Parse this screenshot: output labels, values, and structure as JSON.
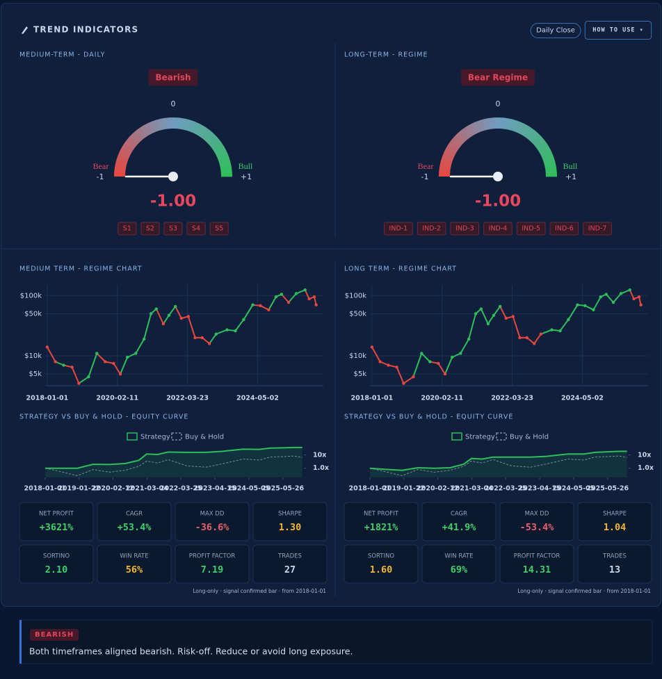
{
  "header": {
    "title": "TREND INDICATORS",
    "buttons": [
      "Daily Close",
      "HOW TO USE ▾"
    ]
  },
  "panels": [
    {
      "title": "MEDIUM-TERM - DAILY",
      "badge": "Bearish",
      "gauge": {
        "range": [
          -1,
          1
        ],
        "ticks": [
          -1,
          0,
          {
            "value": 1,
            "label": "+1"
          }
        ],
        "bear_label": "Bear",
        "bull_label": "Bull",
        "value": -1,
        "value_label": "-1.00"
      },
      "indicators": [
        "S1",
        "S2",
        "S3",
        "S4",
        "S5"
      ]
    },
    {
      "title": "LONG-TERM - REGIME",
      "badge": "Bear Regime",
      "gauge": {
        "range": [
          -1,
          1
        ],
        "ticks": [
          -1,
          0,
          {
            "value": 1,
            "label": "+1"
          }
        ],
        "bear_label": "Bear",
        "bull_label": "Bull",
        "value": -1,
        "value_label": "-1.00"
      },
      "indicators": [
        "IND-1",
        "IND-2",
        "IND-3",
        "IND-4",
        "IND-5",
        "IND-6",
        "IND-7"
      ]
    }
  ],
  "regime_charts": [
    {
      "type": "line",
      "title": "MEDIUM TERM - REGIME CHART",
      "log_scale": true,
      "grid": true,
      "xlim": [
        "2017-12-10",
        "2026-04-25"
      ],
      "ylim": [
        3200,
        150000
      ],
      "xticks": [
        "2018-01-01",
        "2020-02-11",
        "2022-03-23",
        "2024-05-02"
      ],
      "yticks": [
        {
          "value": 5000,
          "label": "$5k"
        },
        {
          "value": 10000,
          "label": "$10k"
        },
        {
          "value": 50000,
          "label": "$50k"
        },
        {
          "value": 100000,
          "label": "$100k"
        }
      ],
      "x": [
        "2018-01-01",
        "2018-04-01",
        "2018-07-01",
        "2018-10-01",
        "2018-12-15",
        "2019-04-01",
        "2019-07-01",
        "2019-10-01",
        "2020-01-01",
        "2020-03-15",
        "2020-06-01",
        "2020-09-01",
        "2020-12-01",
        "2021-02-15",
        "2021-04-15",
        "2021-07-01",
        "2021-09-01",
        "2021-11-10",
        "2022-01-15",
        "2022-04-01",
        "2022-06-15",
        "2022-09-01",
        "2022-11-20",
        "2023-02-01",
        "2023-06-01",
        "2023-09-01",
        "2023-12-01",
        "2024-03-10",
        "2024-06-01",
        "2024-09-01",
        "2024-11-20",
        "2025-01-20",
        "2025-04-08",
        "2025-07-01",
        "2025-10-06",
        "2025-11-20",
        "2026-01-15",
        "2026-02-05"
      ],
      "values": [
        14000,
        8000,
        7000,
        6500,
        3500,
        4500,
        11000,
        8000,
        7500,
        5000,
        9500,
        11000,
        19000,
        50000,
        60000,
        34000,
        47000,
        66000,
        42000,
        45000,
        20000,
        20000,
        16000,
        23000,
        27000,
        26000,
        40000,
        70000,
        68000,
        58000,
        95000,
        105000,
        77000,
        108000,
        124000,
        88000,
        95000,
        70000
      ],
      "colors": [
        "#e8473f",
        "#e8473f",
        "#2fbf5a",
        "#e8473f",
        "#e8473f",
        "#2fbf5a",
        "#2fbf5a",
        "#e8473f",
        "#e8473f",
        "#e8473f",
        "#2fbf5a",
        "#2fbf5a",
        "#2fbf5a",
        "#2fbf5a",
        "#2fbf5a",
        "#e8473f",
        "#2fbf5a",
        "#2fbf5a",
        "#e8473f",
        "#e8473f",
        "#e8473f",
        "#e8473f",
        "#e8473f",
        "#2fbf5a",
        "#2fbf5a",
        "#2fbf5a",
        "#2fbf5a",
        "#2fbf5a",
        "#e8473f",
        "#e8473f",
        "#2fbf5a",
        "#2fbf5a",
        "#e8473f",
        "#2fbf5a",
        "#2fbf5a",
        "#e8473f",
        "#e8473f",
        "#e8473f"
      ]
    },
    {
      "type": "line",
      "title": "LONG TERM - REGIME CHART",
      "log_scale": true,
      "grid": true,
      "xlim": [
        "2017-12-10",
        "2026-04-25"
      ],
      "ylim": [
        3200,
        150000
      ],
      "xticks": [
        "2018-01-01",
        "2020-02-11",
        "2022-03-23",
        "2024-05-02"
      ],
      "yticks": [
        {
          "value": 5000,
          "label": "$5k"
        },
        {
          "value": 10000,
          "label": "$10k"
        },
        {
          "value": 50000,
          "label": "$50k"
        },
        {
          "value": 100000,
          "label": "$100k"
        }
      ],
      "x": [
        "2018-01-01",
        "2018-04-01",
        "2018-07-01",
        "2018-10-01",
        "2018-12-15",
        "2019-04-01",
        "2019-07-01",
        "2019-10-01",
        "2020-01-01",
        "2020-03-15",
        "2020-06-01",
        "2020-09-01",
        "2020-12-01",
        "2021-02-15",
        "2021-04-15",
        "2021-07-01",
        "2021-09-01",
        "2021-11-10",
        "2022-01-15",
        "2022-04-01",
        "2022-06-15",
        "2022-09-01",
        "2022-11-20",
        "2023-02-01",
        "2023-06-01",
        "2023-09-01",
        "2023-12-01",
        "2024-03-10",
        "2024-06-01",
        "2024-09-01",
        "2024-11-20",
        "2025-01-20",
        "2025-04-08",
        "2025-07-01",
        "2025-10-06",
        "2025-11-20",
        "2026-01-15",
        "2026-02-05"
      ],
      "values": [
        14000,
        8000,
        7000,
        6500,
        3500,
        4500,
        11000,
        8000,
        7500,
        5000,
        9500,
        11000,
        19000,
        50000,
        60000,
        34000,
        47000,
        66000,
        42000,
        45000,
        20000,
        20000,
        16000,
        23000,
        27000,
        26000,
        40000,
        70000,
        68000,
        58000,
        95000,
        105000,
        77000,
        108000,
        124000,
        88000,
        95000,
        70000
      ],
      "colors": [
        "#e8473f",
        "#e8473f",
        "#e8473f",
        "#e8473f",
        "#e8473f",
        "#e8473f",
        "#2fbf5a",
        "#2fbf5a",
        "#e8473f",
        "#e8473f",
        "#2fbf5a",
        "#2fbf5a",
        "#2fbf5a",
        "#2fbf5a",
        "#2fbf5a",
        "#2fbf5a",
        "#2fbf5a",
        "#2fbf5a",
        "#e8473f",
        "#e8473f",
        "#e8473f",
        "#e8473f",
        "#e8473f",
        "#e8473f",
        "#2fbf5a",
        "#2fbf5a",
        "#2fbf5a",
        "#2fbf5a",
        "#2fbf5a",
        "#2fbf5a",
        "#2fbf5a",
        "#2fbf5a",
        "#2fbf5a",
        "#2fbf5a",
        "#2fbf5a",
        "#e8473f",
        "#e8473f",
        "#e8473f"
      ]
    }
  ],
  "equity_charts": [
    {
      "type": "line",
      "title": "STRATEGY VS BUY & HOLD - EQUITY CURVE",
      "log_scale": true,
      "xlim": [
        "2017-10-15",
        "2026-01-20"
      ],
      "ylim": [
        0.2,
        60
      ],
      "xticks": [
        "2018-01-01",
        "2019-01-22",
        "2020-02-12",
        "2021-03-04",
        "2022-03-25",
        "2023-04-15",
        "2024-05-05",
        "2025-05-26"
      ],
      "yticks": [
        {
          "value": 1,
          "label": "1.0x"
        },
        {
          "value": 10,
          "label": "10x"
        }
      ],
      "x": [
        "2018-01-01",
        "2018-06-01",
        "2019-01-01",
        "2019-07-01",
        "2020-01-01",
        "2020-07-01",
        "2020-12-01",
        "2021-03-01",
        "2021-07-01",
        "2021-11-01",
        "2022-06-01",
        "2023-01-01",
        "2023-07-01",
        "2024-03-01",
        "2024-09-01",
        "2025-01-01",
        "2025-07-01",
        "2025-10-01",
        "2026-01-01"
      ],
      "series": [
        {
          "name": "Strategy",
          "color": "#2fbf5a",
          "dashed": false,
          "values": [
            1,
            1,
            1,
            2,
            1.9,
            2.3,
            4,
            12,
            11,
            17,
            16,
            16,
            19,
            28,
            27,
            34,
            36,
            37.2,
            37.2
          ]
        },
        {
          "name": "Buy & Hold",
          "color": "#7d889c",
          "dashed": true,
          "values": [
            1,
            0.6,
            0.27,
            0.8,
            0.5,
            0.7,
            1.4,
            3.5,
            2.5,
            4.5,
            1.5,
            1.2,
            2.1,
            5,
            4.2,
            7,
            7.8,
            8.5,
            6.5
          ]
        }
      ]
    },
    {
      "type": "line",
      "title": "STRATEGY VS BUY & HOLD - EQUITY CURVE",
      "log_scale": true,
      "xlim": [
        "2017-10-15",
        "2026-01-20"
      ],
      "ylim": [
        0.2,
        60
      ],
      "xticks": [
        "2018-01-01",
        "2019-01-22",
        "2020-02-12",
        "2021-03-04",
        "2022-03-25",
        "2023-04-15",
        "2024-05-05",
        "2025-05-26"
      ],
      "yticks": [
        {
          "value": 1,
          "label": "1.0x"
        },
        {
          "value": 10,
          "label": "10x"
        }
      ],
      "x": [
        "2018-01-01",
        "2018-06-01",
        "2019-01-01",
        "2019-07-01",
        "2020-01-01",
        "2020-07-01",
        "2020-12-01",
        "2021-03-01",
        "2021-07-01",
        "2021-11-01",
        "2022-06-01",
        "2023-01-01",
        "2023-07-01",
        "2024-03-01",
        "2024-09-01",
        "2025-01-01",
        "2025-07-01",
        "2025-10-01",
        "2026-01-01"
      ],
      "series": [
        {
          "name": "Strategy",
          "color": "#2fbf5a",
          "dashed": false,
          "values": [
            1,
            0.85,
            0.7,
            1.1,
            1,
            1.1,
            2,
            5.5,
            5,
            7,
            7,
            7,
            8,
            12,
            12,
            16,
            18,
            19.2,
            19.2
          ]
        },
        {
          "name": "Buy & Hold",
          "color": "#7d889c",
          "dashed": true,
          "values": [
            1,
            0.6,
            0.27,
            0.8,
            0.5,
            0.7,
            1.4,
            3.5,
            2.5,
            4.5,
            1.5,
            1.2,
            2.1,
            5,
            4.2,
            7,
            7.8,
            8.5,
            6.5
          ]
        }
      ]
    }
  ],
  "metrics": [
    {
      "cards": [
        {
          "label": "NET PROFIT",
          "value": "+3621%",
          "color": "#3ecf6a"
        },
        {
          "label": "CAGR",
          "value": "+53.4%",
          "color": "#3ecf6a"
        },
        {
          "label": "MAX DD",
          "value": "-36.6%",
          "color": "#e8606a"
        },
        {
          "label": "SHARPE",
          "value": "1.30",
          "color": "#f2b72f"
        },
        {
          "label": "SORTINO",
          "value": "2.10",
          "color": "#3ecf6a"
        },
        {
          "label": "WIN RATE",
          "value": "56%",
          "color": "#f2b72f"
        },
        {
          "label": "PROFIT FACTOR",
          "value": "7.19",
          "color": "#3ecf6a"
        },
        {
          "label": "TRADES",
          "value": "27",
          "color": "#c9d6ea"
        }
      ],
      "note": "Long-only · signal confirmed bar · from 2018-01-01"
    },
    {
      "cards": [
        {
          "label": "NET PROFIT",
          "value": "+1821%",
          "color": "#3ecf6a"
        },
        {
          "label": "CAGR",
          "value": "+41.9%",
          "color": "#3ecf6a"
        },
        {
          "label": "MAX DD",
          "value": "-53.4%",
          "color": "#e8606a"
        },
        {
          "label": "SHARPE",
          "value": "1.04",
          "color": "#f2b72f"
        },
        {
          "label": "SORTINO",
          "value": "1.60",
          "color": "#f2b72f"
        },
        {
          "label": "WIN RATE",
          "value": "69%",
          "color": "#3ecf6a"
        },
        {
          "label": "PROFIT FACTOR",
          "value": "14.31",
          "color": "#3ecf6a"
        },
        {
          "label": "TRADES",
          "value": "13",
          "color": "#c9d6ea"
        }
      ],
      "note": "Long-only · signal confirmed bar · from 2018-01-01"
    }
  ],
  "summary": {
    "badge": "BEARISH",
    "text": "Both timeframes aligned bearish. Risk-off. Reduce or avoid long exposure."
  }
}
